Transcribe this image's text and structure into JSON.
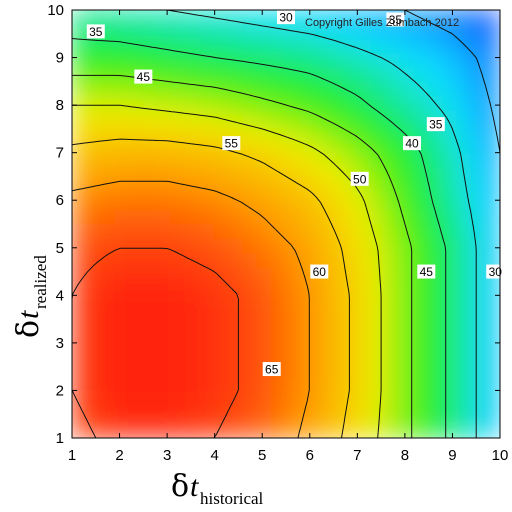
{
  "chart_data": {
    "type": "heatmap",
    "title": "",
    "xlabel": {
      "symbol": "δ",
      "var": "t",
      "sub": "historical"
    },
    "ylabel": {
      "symbol": "δ",
      "var": "t",
      "sub": "realized"
    },
    "xlim": [
      1,
      10
    ],
    "ylim": [
      1,
      10
    ],
    "xticks": [
      "1",
      "2",
      "3",
      "4",
      "5",
      "6",
      "7",
      "8",
      "9",
      "10"
    ],
    "yticks": [
      "1",
      "2",
      "3",
      "4",
      "5",
      "6",
      "7",
      "8",
      "9",
      "10"
    ],
    "colorscale": [
      "#1040ff",
      "#10e0ff",
      "#20f020",
      "#f0f000",
      "#ffa000",
      "#ff1010"
    ],
    "value_range": [
      25,
      68
    ],
    "peak": {
      "x": 2.8,
      "y": 2.8,
      "value": 67
    },
    "grid": [
      {
        "y": 10,
        "values": [
          37,
          36,
          35,
          34,
          33,
          32,
          31,
          30,
          28,
          25
        ]
      },
      {
        "y": 9,
        "values": [
          42,
          42,
          41,
          40,
          39,
          38,
          36,
          34,
          32,
          28
        ]
      },
      {
        "y": 8,
        "values": [
          50,
          50,
          49,
          48,
          46,
          44,
          41,
          37,
          34,
          29
        ]
      },
      {
        "y": 7,
        "values": [
          56,
          57,
          57,
          56,
          54,
          51,
          47,
          42,
          36,
          30
        ]
      },
      {
        "y": 6,
        "values": [
          61,
          62,
          62,
          61,
          59,
          56,
          51,
          44,
          37,
          31
        ]
      },
      {
        "y": 5,
        "values": [
          64,
          65,
          65,
          64,
          62,
          59,
          53,
          46,
          39,
          31
        ]
      },
      {
        "y": 4,
        "values": [
          65,
          67,
          67,
          66,
          64,
          60,
          54,
          46,
          39,
          31
        ]
      },
      {
        "y": 3,
        "values": [
          65,
          67,
          67,
          66,
          64,
          60,
          54,
          46,
          39,
          31
        ]
      },
      {
        "y": 2,
        "values": [
          65,
          67,
          67,
          66,
          64,
          60,
          54,
          46,
          39,
          31
        ]
      },
      {
        "y": 1,
        "values": [
          64,
          66,
          66,
          65,
          63,
          59,
          53,
          46,
          39,
          31
        ]
      }
    ],
    "contour_levels": [
      30,
      35,
      40,
      45,
      50,
      55,
      60,
      65
    ],
    "contour_labels": [
      {
        "text": "35",
        "x": 1.5,
        "y": 9.55
      },
      {
        "text": "30",
        "x": 5.5,
        "y": 9.85
      },
      {
        "text": "35",
        "x": 7.8,
        "y": 9.8
      },
      {
        "text": "45",
        "x": 2.5,
        "y": 8.6
      },
      {
        "text": "55",
        "x": 4.35,
        "y": 7.2
      },
      {
        "text": "40",
        "x": 8.15,
        "y": 7.2
      },
      {
        "text": "35",
        "x": 8.65,
        "y": 7.6
      },
      {
        "text": "50",
        "x": 7.05,
        "y": 6.45
      },
      {
        "text": "60",
        "x": 6.2,
        "y": 4.5
      },
      {
        "text": "45",
        "x": 8.45,
        "y": 4.5
      },
      {
        "text": "30",
        "x": 9.9,
        "y": 4.5
      },
      {
        "text": "65",
        "x": 5.2,
        "y": 2.45
      }
    ],
    "annotations": [
      "Copyright Gilles Zumbach 2012"
    ]
  }
}
